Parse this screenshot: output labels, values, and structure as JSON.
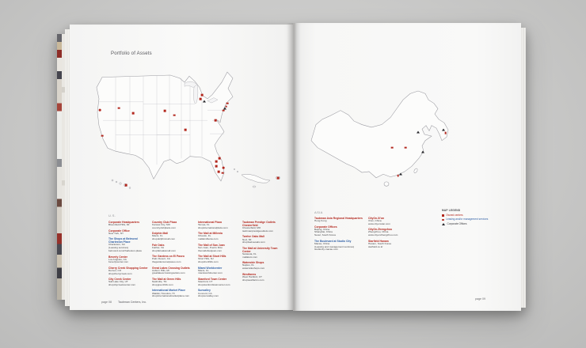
{
  "book": {
    "page_title": "Portfolio of Assets",
    "footer": {
      "left_page_label": "page 08",
      "company": "Taubman Centers, Inc.",
      "right_page_label": "page 09"
    }
  },
  "colors": {
    "owned_red": "#b3271d",
    "leasing_blue": "#2f5fa5",
    "corporate_dark": "#28282c",
    "paper": "#f8f8f7"
  },
  "us": {
    "heading": "U.S.",
    "col1": [
      {
        "type": "red",
        "name": "Corporate Headquarters",
        "details": "Bloomfield Hills, MI"
      },
      {
        "type": "red",
        "name": "Corporate Office",
        "details": "New York, NY"
      },
      {
        "type": "blue",
        "name": "The Shops at Belmond Charleston Place",
        "details": "Charleston, SC\n(Leasing services)\nbelmond.com/charleston-place"
      },
      {
        "type": "red",
        "name": "Beverly Center",
        "details": "Los Angeles, CA\nbeverlycenter.com"
      },
      {
        "type": "red",
        "name": "Cherry Creek Shopping Center",
        "details": "Denver, CO\nshopcherrycreek.com"
      },
      {
        "type": "red",
        "name": "City Creek Center",
        "details": "Salt Lake City, UT\nshopcitycreekcenter.com"
      }
    ],
    "col2": [
      {
        "type": "red",
        "name": "Country Club Plaza",
        "details": "Kansas City, MO\ncountryclubplaza.com"
      },
      {
        "type": "red",
        "name": "Dolphin Mall",
        "details": "Miami, FL\nshopdolphinmall.com"
      },
      {
        "type": "red",
        "name": "Fair Oaks",
        "details": "Fairfax, VA\nshopfairoaksmall.com"
      },
      {
        "type": "red",
        "name": "The Gardens on El Paseo",
        "details": "Palm Desert, CA\nthegardensonelpaseo.com"
      },
      {
        "type": "red",
        "name": "Great Lakes Crossing Outlets",
        "details": "Auburn Hills, MI\ngreatlakescrossingoutlets.com"
      },
      {
        "type": "red",
        "name": "The Mall at Green Hills",
        "details": "Nashville, TN\nshopgreenhills.com"
      },
      {
        "type": "blue",
        "name": "International Market Place",
        "details": "Waikiki, Honolulu, HI\nshopinternationalmarketplace.com"
      }
    ],
    "col3": [
      {
        "type": "red",
        "name": "International Plaza",
        "details": "Tampa, FL\nshopinternationalplaza.com"
      },
      {
        "type": "red",
        "name": "The Mall at Millenia",
        "details": "Orlando, FL\nmallatmillenia.com"
      },
      {
        "type": "red",
        "name": "The Mall of San Juan",
        "details": "San Juan, Puerto Rico\nthemallofsanjuan.com"
      },
      {
        "type": "red",
        "name": "The Mall at Short Hills",
        "details": "Short Hills, NJ\nshopshorthills.com"
      },
      {
        "type": "blue",
        "name": "Miami Worldcenter",
        "details": "Miami, FL\nmiamiworldcenter.com"
      },
      {
        "type": "red",
        "name": "Stamford Town Center",
        "details": "Stamford, CT\nshopstamfordtowncenter.com"
      },
      {
        "type": "blue",
        "name": "Sunvalley",
        "details": "Concord, CA\nshopsunvalley.com"
      }
    ],
    "col4": [
      {
        "type": "red",
        "name": "Taubman Prestige Outlets Chesterfield",
        "details": "Chesterfield, MO\ntaubmanprestigeoutlets.com"
      },
      {
        "type": "red",
        "name": "Twelve Oaks Mall",
        "details": "Novi, MI\nshoptwelveoaks.com"
      },
      {
        "type": "red",
        "name": "The Mall at University Town Center",
        "details": "Sarasota, FL\nmallatutc.com"
      },
      {
        "type": "red",
        "name": "Waterside Shops",
        "details": "Naples, FL\nwatersideshops.com"
      },
      {
        "type": "red",
        "name": "Westfarms",
        "details": "West Hartford, CT\nshopwestfarms.com"
      }
    ]
  },
  "asia": {
    "heading": "ASIA",
    "col1": [
      {
        "type": "red",
        "name": "Taubman Asia Regional Headquarters",
        "details": "Hong Kong"
      },
      {
        "type": "red",
        "name": "Corporate Offices",
        "details": "Beijing, China\nShanghai, China\nSeoul, South Korea"
      },
      {
        "type": "blue",
        "name": "The Boulevard at Studio City",
        "details": "Macau, China\n(Leasing and management services)\nstudiocity-macau.com"
      }
    ],
    "col2": [
      {
        "type": "red",
        "name": "CityOn.Xi'an",
        "details": "Xi'an, China\nwww.cityonxian.com"
      },
      {
        "type": "red",
        "name": "CityOn.Zhengzhou",
        "details": "Zhengzhou, China\nwww.cityonzhengzhou.com"
      },
      {
        "type": "red",
        "name": "Starfield Hanam",
        "details": "Hanam, South Korea\nstarfield.co.kr"
      }
    ]
  },
  "legend": {
    "title": "MAP LEGEND",
    "items": [
      {
        "sym": "square",
        "text_class": "red",
        "label": "Owned centers"
      },
      {
        "sym": "dot",
        "text_class": "blue",
        "label": "Leasing and/or management services"
      },
      {
        "sym": "triangle",
        "text_class": "dark",
        "label": "Corporate Offices"
      }
    ]
  },
  "us_map": {
    "markers": [
      {
        "type": "dot",
        "x": 4.5,
        "y": 32.2
      },
      {
        "type": "square",
        "x": 5.7,
        "y": 52.3
      },
      {
        "type": "square",
        "x": 14.3,
        "y": 30.6
      },
      {
        "type": "square",
        "x": 21.6,
        "y": 34.6
      },
      {
        "type": "square",
        "x": 38.0,
        "y": 33.0
      },
      {
        "type": "square",
        "x": 42.9,
        "y": 36.2
      },
      {
        "type": "square",
        "x": 48.6,
        "y": 47.5
      },
      {
        "type": "square",
        "x": 56.3,
        "y": 23.4
      },
      {
        "type": "square",
        "x": 57.1,
        "y": 20.6
      },
      {
        "type": "triangle",
        "x": 58.2,
        "y": 25.0
      },
      {
        "type": "square",
        "x": 64.1,
        "y": 40.2
      },
      {
        "type": "square",
        "x": 64.5,
        "y": 72.3
      },
      {
        "type": "square",
        "x": 66.1,
        "y": 69.9
      },
      {
        "type": "square",
        "x": 64.5,
        "y": 76.0
      },
      {
        "type": "square",
        "x": 65.7,
        "y": 80.4
      },
      {
        "type": "square",
        "x": 67.8,
        "y": 81.2
      },
      {
        "type": "dot",
        "x": 68.2,
        "y": 77.2
      },
      {
        "type": "square",
        "x": 68.2,
        "y": 32.6
      },
      {
        "type": "triangle",
        "x": 68.8,
        "y": 31.0
      },
      {
        "type": "square",
        "x": 69.6,
        "y": 29.4
      },
      {
        "type": "square",
        "x": 70.4,
        "y": 27.0
      },
      {
        "type": "square",
        "x": 18.0,
        "y": 90.7
      },
      {
        "type": "square",
        "x": 96.3,
        "y": 85.2
      }
    ]
  },
  "asia_map": {
    "markers": [
      {
        "type": "triangle",
        "x": 66.5,
        "y": 42.6
      },
      {
        "type": "square",
        "x": 51.2,
        "y": 57.5
      },
      {
        "type": "square",
        "x": 59.1,
        "y": 57.5
      },
      {
        "type": "triangle",
        "x": 69.3,
        "y": 61.7
      },
      {
        "type": "triangle",
        "x": 81.2,
        "y": 41.0
      },
      {
        "type": "square",
        "x": 82.6,
        "y": 43.9
      },
      {
        "type": "triangle",
        "x": 56.3,
        "y": 82.0
      },
      {
        "type": "dot",
        "x": 54.7,
        "y": 83.7
      }
    ]
  }
}
